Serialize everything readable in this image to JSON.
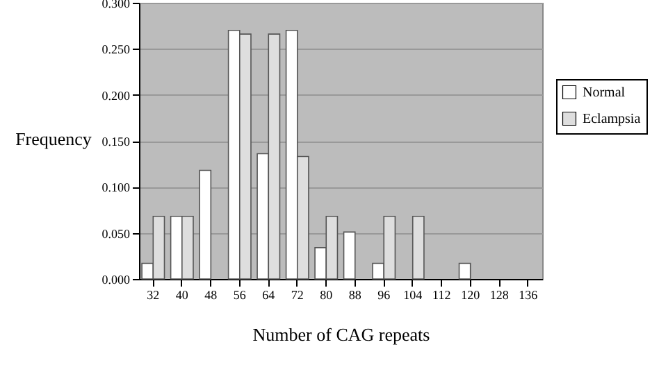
{
  "chart_data": {
    "type": "bar",
    "xlabel": "Number of CAG repeats",
    "ylabel": "Frequency",
    "categories": [
      "32",
      "40",
      "48",
      "56",
      "64",
      "72",
      "80",
      "88",
      "96",
      "104",
      "112",
      "120",
      "128",
      "136"
    ],
    "series": [
      {
        "name": "Normal",
        "color": "#ffffff",
        "values": [
          0.017,
          0.068,
          0.118,
          0.27,
          0.136,
          0.27,
          0.034,
          0.051,
          0.017,
          null,
          null,
          0.017,
          null,
          null
        ]
      },
      {
        "name": "Eclampsia",
        "color": "#dedede",
        "values": [
          0.068,
          0.068,
          null,
          0.266,
          0.266,
          0.133,
          0.068,
          null,
          0.068,
          0.068,
          null,
          null,
          null,
          null
        ]
      }
    ],
    "ylim": [
      0,
      0.3
    ],
    "yticks": [
      {
        "value": 0,
        "label": "0.000"
      },
      {
        "value": 0.05,
        "label": "0.050"
      },
      {
        "value": 0.1,
        "label": "0.100"
      },
      {
        "value": 0.15,
        "label": "0.150"
      },
      {
        "value": 0.2,
        "label": "0.200"
      },
      {
        "value": 0.25,
        "label": "0.250"
      },
      {
        "value": 0.3,
        "label": "0.300"
      }
    ],
    "grid": "y",
    "legend": "right"
  }
}
